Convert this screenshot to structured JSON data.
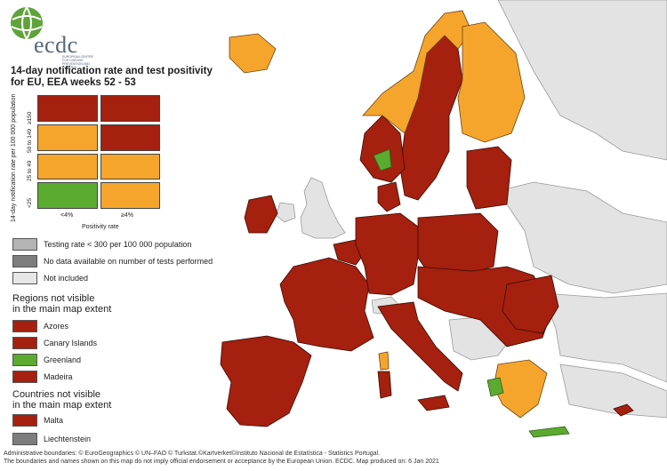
{
  "logo": {
    "text": "ecdc",
    "subtitle": "EUROPEAN CENTRE FOR DISEASE PREVENTION AND CONTROL"
  },
  "title": {
    "line1": "14-day notification rate and test positivity",
    "line2": "for EU, EEA weeks 52 - 53"
  },
  "colors": {
    "dark_red": "#a5200e",
    "orange": "#f6a52c",
    "green": "#5aab2f",
    "light_grey": "#e0e0e0",
    "mid_grey": "#9b9b9b",
    "sea": "#ffffff"
  },
  "matrix": {
    "y_axis_label": "14-day notification rate per 100 000 population",
    "x_axis_label": "Positivity rate",
    "row_labels": [
      "≥150",
      "50 to 149",
      "25 to 49",
      "<25"
    ],
    "col_labels": [
      "<4%",
      "≥4%"
    ],
    "cells": [
      [
        "dark_red",
        "dark_red"
      ],
      [
        "orange",
        "dark_red"
      ],
      [
        "orange",
        "orange"
      ],
      [
        "green",
        "orange"
      ]
    ]
  },
  "legend": {
    "grey_items": [
      {
        "label": "Testing rate < 300 per 100 000 population",
        "color": "#b4b4b4"
      },
      {
        "label": "No data available on number of tests performed",
        "color": "#7d7d7d"
      },
      {
        "label": "Not included",
        "color": "#e6e6e6"
      }
    ],
    "regions_heading": [
      "Regions not visible",
      "in the main map extent"
    ],
    "regions": [
      {
        "label": "Azores",
        "color": "dark_red"
      },
      {
        "label": "Canary Islands",
        "color": "dark_red"
      },
      {
        "label": "Greenland",
        "color": "green"
      },
      {
        "label": "Madeira",
        "color": "dark_red"
      }
    ],
    "countries_heading": [
      "Countries not visible",
      "in the main map extent"
    ],
    "countries": [
      {
        "label": "Malta",
        "color": "dark_red"
      },
      {
        "label": "Liechtenstein",
        "color": "#7d7d7d"
      }
    ]
  },
  "footer": {
    "line1": "Administrative boundaries: © EuroGeographics © UN–FAO © Turkstat.©Kartverket©Instituto Nacional de Estatística - Statistics Portugal.",
    "line2": "The boundaries and names shown on this map do not imply official endorsement or acceptance by the European Union. ECDC. Map produced on: 6 Jan 2021"
  }
}
